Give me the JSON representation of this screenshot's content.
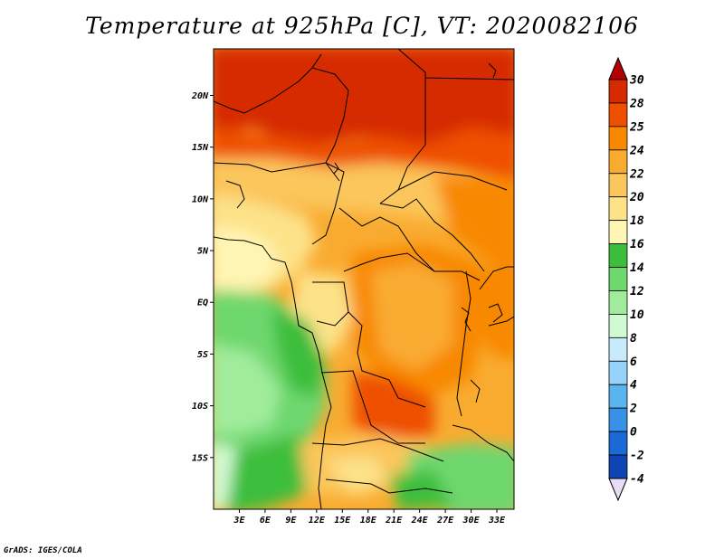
{
  "title": "Temperature at 925hPa [C], VT: 2020082106",
  "credit": "GrADS: IGES/COLA",
  "map": {
    "lon_range": [
      0,
      35
    ],
    "lat_range": [
      -20,
      24.5
    ],
    "lat_ticks": [
      {
        "value": 20,
        "label": "20N"
      },
      {
        "value": 15,
        "label": "15N"
      },
      {
        "value": 10,
        "label": "10N"
      },
      {
        "value": 5,
        "label": "5N"
      },
      {
        "value": 0,
        "label": "EQ"
      },
      {
        "value": -5,
        "label": "5S"
      },
      {
        "value": -10,
        "label": "10S"
      },
      {
        "value": -15,
        "label": "15S"
      }
    ],
    "lon_ticks": [
      {
        "value": 3,
        "label": "3E"
      },
      {
        "value": 6,
        "label": "6E"
      },
      {
        "value": 9,
        "label": "9E"
      },
      {
        "value": 12,
        "label": "12E"
      },
      {
        "value": 15,
        "label": "15E"
      },
      {
        "value": 18,
        "label": "18E"
      },
      {
        "value": 21,
        "label": "21E"
      },
      {
        "value": 24,
        "label": "24E"
      },
      {
        "value": 27,
        "label": "27E"
      },
      {
        "value": 30,
        "label": "30E"
      },
      {
        "value": 33,
        "label": "33E"
      }
    ]
  },
  "colorbar": {
    "labels": [
      "30",
      "28",
      "25",
      "24",
      "22",
      "20",
      "18",
      "16",
      "14",
      "12",
      "10",
      "8",
      "6",
      "4",
      "2",
      "0",
      "-2",
      "-4"
    ],
    "colors": [
      "#d62a00",
      "#ee5000",
      "#f88800",
      "#f9ab30",
      "#fbc65c",
      "#fde28a",
      "#fff5b4",
      "#3cbe3c",
      "#6ed76e",
      "#a0ec9c",
      "#d2fad2",
      "#c8ebfc",
      "#96d2fa",
      "#5ab4f0",
      "#3791e6",
      "#1a69d6",
      "#0f44b4",
      "#001a82"
    ],
    "top_cap_color": "#b40000",
    "bottom_cap_color": "#e6dcf5"
  }
}
